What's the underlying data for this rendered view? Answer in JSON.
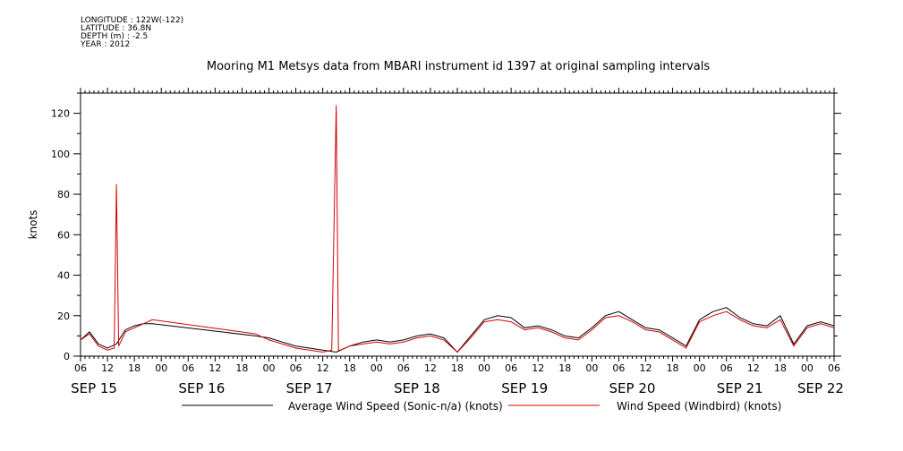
{
  "header": {
    "longitude": "LONGITUDE : 122W(-122)",
    "latitude": "LATITUDE : 36.8N",
    "depth": "DEPTH (m) : -2.5",
    "year": "YEAR : 2012"
  },
  "chart_data": {
    "type": "line",
    "title": "Mooring M1 Metsys data from MBARI instrument id 1397 at original sampling intervals",
    "ylabel": "knots",
    "ylim": [
      0,
      130
    ],
    "yticks": [
      0,
      20,
      40,
      60,
      80,
      100,
      120
    ],
    "xlim_hours": [
      0,
      168
    ],
    "x_hour_labels": [
      "06",
      "12",
      "18",
      "00",
      "06",
      "12",
      "18",
      "00",
      "06",
      "12",
      "18",
      "00",
      "06",
      "12",
      "18",
      "00",
      "06",
      "12",
      "18",
      "00",
      "06",
      "12",
      "18",
      "00",
      "06",
      "12",
      "18",
      "00",
      "06"
    ],
    "x_day_labels": [
      "SEP 15",
      "SEP 16",
      "SEP 17",
      "SEP 18",
      "SEP 19",
      "SEP 20",
      "SEP 21",
      "SEP 22"
    ],
    "series": [
      {
        "name": "Average Wind Speed (Sonic-n/a) (knots)",
        "color": "#000000",
        "x": [
          "2012-09-15 06:00",
          "2012-09-15 08:00",
          "2012-09-15 10:00",
          "2012-09-15 12:00",
          "2012-09-15 14:00",
          "2012-09-15 16:00",
          "2012-09-15 18:00",
          "2012-09-15 20:00",
          "2012-09-15 22:00",
          "2012-09-16 21:00",
          "2012-09-17 00:00",
          "2012-09-17 03:00",
          "2012-09-17 06:00",
          "2012-09-17 09:00",
          "2012-09-17 12:00",
          "2012-09-17 15:00",
          "2012-09-17 18:00",
          "2012-09-17 21:00",
          "2012-09-18 00:00",
          "2012-09-18 03:00",
          "2012-09-18 06:00",
          "2012-09-18 09:00",
          "2012-09-18 12:00",
          "2012-09-18 15:00",
          "2012-09-18 18:00",
          "2012-09-18 21:00",
          "2012-09-19 00:00",
          "2012-09-19 03:00",
          "2012-09-19 06:00",
          "2012-09-19 09:00",
          "2012-09-19 12:00",
          "2012-09-19 15:00",
          "2012-09-19 18:00",
          "2012-09-19 21:00",
          "2012-09-20 00:00",
          "2012-09-20 03:00",
          "2012-09-20 06:00",
          "2012-09-20 09:00",
          "2012-09-20 12:00",
          "2012-09-20 15:00",
          "2012-09-20 18:00",
          "2012-09-20 21:00",
          "2012-09-21 00:00",
          "2012-09-21 03:00",
          "2012-09-21 06:00",
          "2012-09-21 09:00",
          "2012-09-21 12:00",
          "2012-09-21 15:00",
          "2012-09-21 18:00",
          "2012-09-21 21:00",
          "2012-09-22 00:00",
          "2012-09-22 03:00",
          "2012-09-22 06:00"
        ],
        "values": [
          8,
          12,
          6,
          4,
          6,
          13,
          15,
          16,
          16,
          10,
          9,
          7,
          5,
          4,
          3,
          2,
          5,
          7,
          8,
          7,
          8,
          10,
          11,
          9,
          2,
          10,
          18,
          20,
          19,
          14,
          15,
          13,
          10,
          9,
          14,
          20,
          22,
          18,
          14,
          13,
          9,
          5,
          18,
          22,
          24,
          19,
          16,
          15,
          20,
          6,
          15,
          17,
          15
        ]
      },
      {
        "name": "Wind Speed (Windbird) (knots)",
        "color": "#d40000",
        "x": [
          "2012-09-15 06:00",
          "2012-09-15 08:00",
          "2012-09-15 10:00",
          "2012-09-15 12:00",
          "2012-09-15 13:30",
          "2012-09-15 14:00",
          "2012-09-15 14:30",
          "2012-09-15 16:00",
          "2012-09-15 18:00",
          "2012-09-15 20:00",
          "2012-09-15 22:00",
          "2012-09-16 21:00",
          "2012-09-17 00:00",
          "2012-09-17 03:00",
          "2012-09-17 06:00",
          "2012-09-17 09:00",
          "2012-09-17 12:00",
          "2012-09-17 14:00",
          "2012-09-17 15:00",
          "2012-09-17 15:30",
          "2012-09-17 16:00",
          "2012-09-17 18:00",
          "2012-09-17 21:00",
          "2012-09-18 00:00",
          "2012-09-18 03:00",
          "2012-09-18 06:00",
          "2012-09-18 09:00",
          "2012-09-18 12:00",
          "2012-09-18 15:00",
          "2012-09-18 18:00",
          "2012-09-18 21:00",
          "2012-09-19 00:00",
          "2012-09-19 03:00",
          "2012-09-19 06:00",
          "2012-09-19 09:00",
          "2012-09-19 12:00",
          "2012-09-19 15:00",
          "2012-09-19 18:00",
          "2012-09-19 21:00",
          "2012-09-20 00:00",
          "2012-09-20 03:00",
          "2012-09-20 06:00",
          "2012-09-20 09:00",
          "2012-09-20 12:00",
          "2012-09-20 15:00",
          "2012-09-20 18:00",
          "2012-09-20 21:00",
          "2012-09-21 00:00",
          "2012-09-21 03:00",
          "2012-09-21 06:00",
          "2012-09-21 09:00",
          "2012-09-21 12:00",
          "2012-09-21 15:00",
          "2012-09-21 18:00",
          "2012-09-21 21:00",
          "2012-09-22 00:00",
          "2012-09-22 03:00",
          "2012-09-22 06:00"
        ],
        "values": [
          8,
          11,
          5,
          3,
          4,
          85,
          5,
          12,
          14,
          16,
          18,
          11,
          8,
          6,
          4,
          3,
          2,
          3,
          124,
          3,
          3,
          5,
          6,
          7,
          6,
          7,
          9,
          10,
          8,
          2,
          9,
          17,
          18,
          17,
          13,
          14,
          12,
          9,
          8,
          13,
          19,
          20,
          17,
          13,
          12,
          8,
          4,
          17,
          20,
          22,
          18,
          15,
          14,
          18,
          5,
          14,
          16,
          14
        ]
      }
    ]
  }
}
